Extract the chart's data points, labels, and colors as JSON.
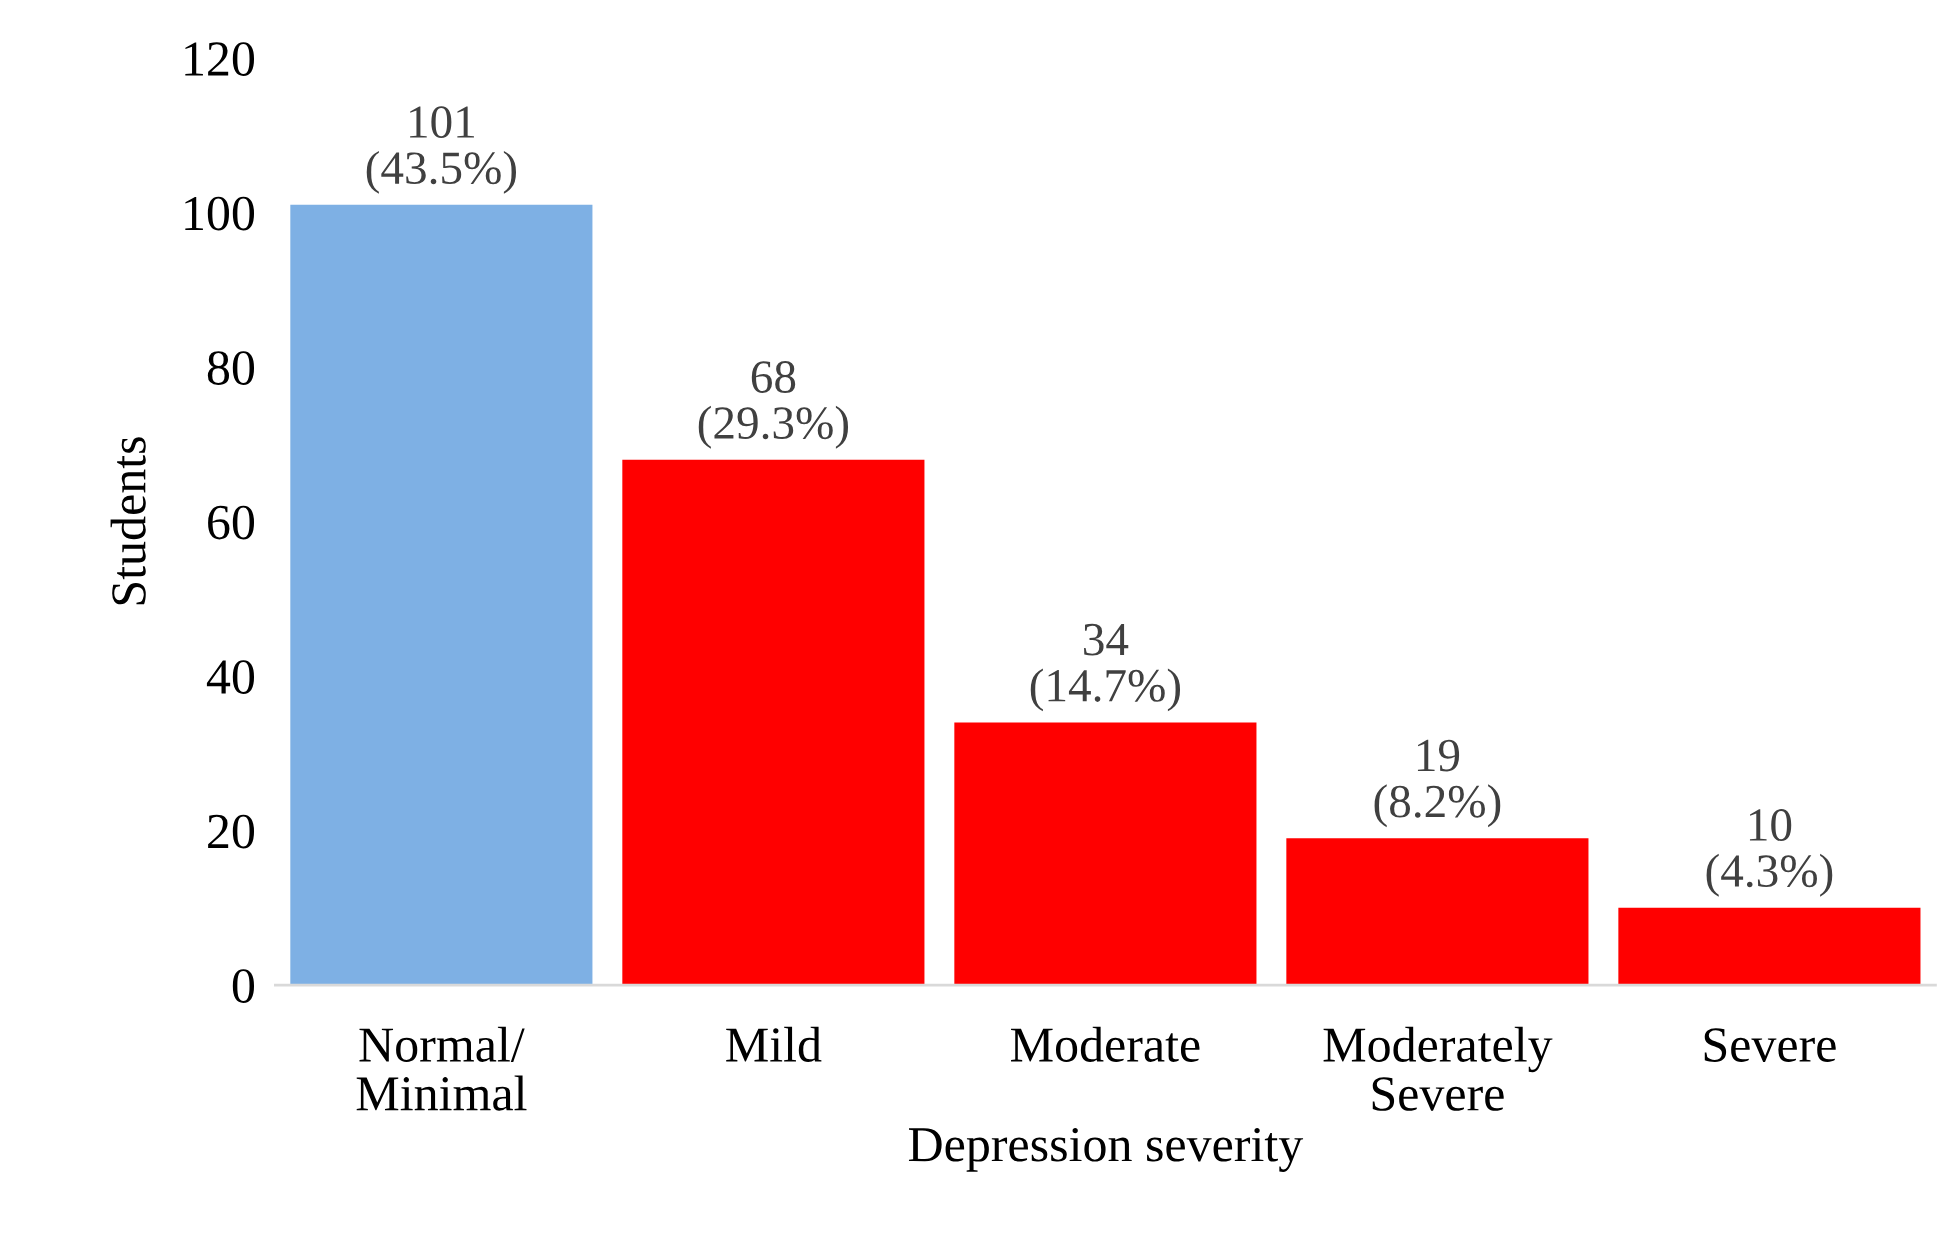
{
  "chart_data": {
    "type": "bar",
    "xlabel": "Depression severity",
    "ylabel": "Students",
    "categories": [
      "Normal/\nMinimal",
      "Mild",
      "Moderate",
      "Moderately\nSevere",
      "Severe"
    ],
    "values": [
      101,
      68,
      34,
      19,
      10
    ],
    "colors": [
      "#7eb0e4",
      "#ff0000",
      "#ff0000",
      "#ff0000",
      "#ff0000"
    ],
    "value_labels": [
      "101\n(43.5%)",
      "68\n(29.3%)",
      "34\n(14.7%)",
      "19\n(8.2%)",
      "10\n(4.3%)"
    ],
    "ylim": [
      0,
      120
    ],
    "yticks": [
      0,
      20,
      40,
      60,
      80,
      100,
      120
    ],
    "grid": false,
    "legend": false
  }
}
